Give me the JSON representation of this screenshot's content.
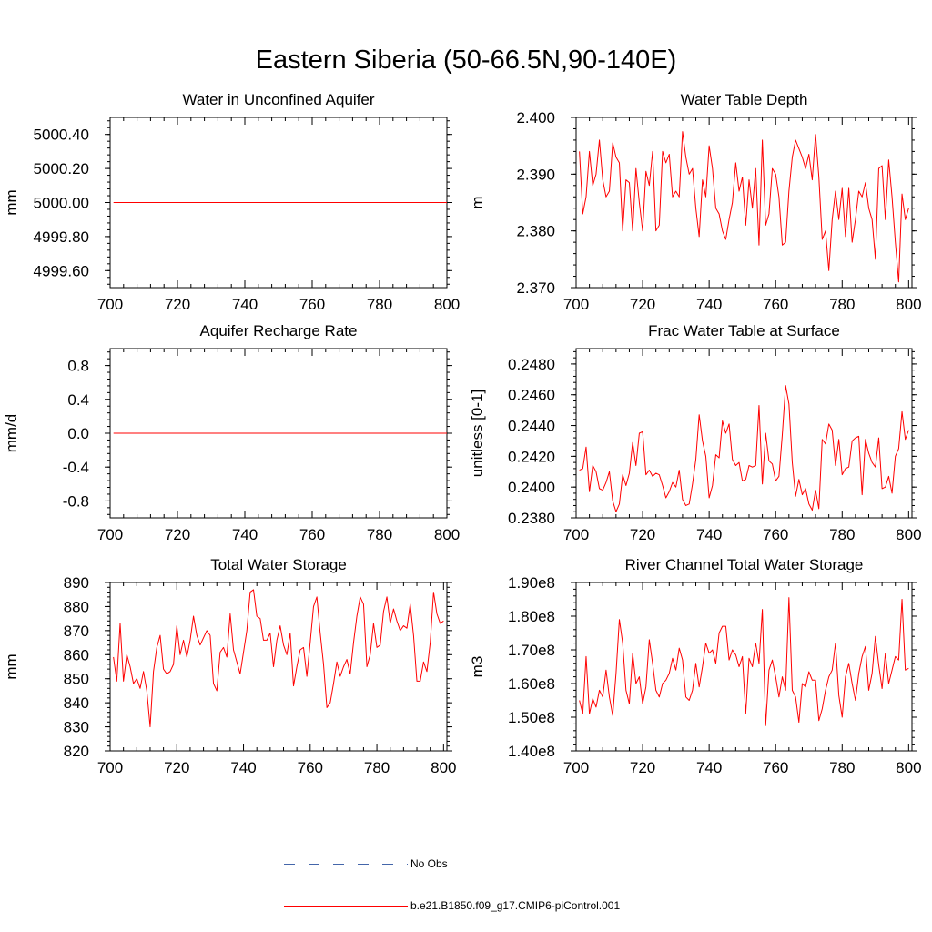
{
  "title": "Eastern Siberia (50-66.5N,90-140E)",
  "colors": {
    "model": "#ff0000",
    "obs": "#4466aa",
    "axis": "#000000"
  },
  "legend": {
    "obs_label": "No Obs",
    "model_label": "b.e21.B1850.f09_g17.CMIP6-piControl.001"
  },
  "chart_data": [
    {
      "type": "line",
      "title": "Water in Unconfined Aquifer",
      "ylabel": "mm",
      "xlim": [
        700,
        800
      ],
      "ylim": [
        4999.5,
        5000.5
      ],
      "yticks": [
        4999.6,
        4999.8,
        5000.0,
        5000.2,
        5000.4
      ],
      "ytick_labels": [
        "4999.60",
        "4999.80",
        "5000.00",
        "5000.20",
        "5000.40"
      ],
      "xticks": [
        700,
        720,
        740,
        760,
        780,
        800
      ],
      "xtick_labels": [
        "700",
        "720",
        "740",
        "760",
        "780",
        "800"
      ],
      "x_start": 701,
      "constant": 5000.0
    },
    {
      "type": "line",
      "title": "Water Table Depth",
      "ylabel": "m",
      "xlim": [
        700,
        801
      ],
      "ylim": [
        2.37,
        2.4
      ],
      "yticks": [
        2.37,
        2.38,
        2.39,
        2.4
      ],
      "ytick_labels": [
        "2.370",
        "2.380",
        "2.390",
        "2.400"
      ],
      "xticks": [
        700,
        720,
        740,
        760,
        780,
        800
      ],
      "xtick_labels": [
        "700",
        "720",
        "740",
        "760",
        "780",
        "800"
      ],
      "x_start": 701,
      "values": [
        2.394,
        2.383,
        2.386,
        2.394,
        2.388,
        2.39,
        2.396,
        2.389,
        2.386,
        2.387,
        2.3955,
        2.393,
        2.392,
        2.38,
        2.389,
        2.3885,
        2.38,
        2.391,
        2.385,
        2.38,
        2.3905,
        2.388,
        2.394,
        2.38,
        2.381,
        2.394,
        2.392,
        2.3935,
        2.386,
        2.387,
        2.386,
        2.3975,
        2.393,
        2.39,
        2.391,
        2.384,
        2.379,
        2.389,
        2.386,
        2.395,
        2.391,
        2.384,
        2.383,
        2.38,
        2.3785,
        2.382,
        2.385,
        2.392,
        2.387,
        2.3895,
        2.381,
        2.389,
        2.384,
        2.391,
        2.3775,
        2.396,
        2.381,
        2.383,
        2.391,
        2.39,
        2.386,
        2.3775,
        2.378,
        2.387,
        2.393,
        2.396,
        2.3945,
        2.393,
        2.391,
        2.3935,
        2.389,
        2.397,
        2.3895,
        2.3785,
        2.38,
        2.373,
        2.382,
        2.387,
        2.382,
        2.3875,
        2.379,
        2.3875,
        2.378,
        2.382,
        2.387,
        2.386,
        2.3885,
        2.384,
        2.382,
        2.375,
        2.391,
        2.3915,
        2.382,
        2.3925,
        2.386,
        2.378,
        2.371,
        2.3865,
        2.382,
        2.384
      ]
    },
    {
      "type": "line",
      "title": "Aquifer Recharge Rate",
      "ylabel": "mm/d",
      "xlim": [
        700,
        800
      ],
      "ylim": [
        -1.0,
        1.0
      ],
      "yticks": [
        -0.8,
        -0.4,
        0.0,
        0.4,
        0.8
      ],
      "ytick_labels": [
        "-0.8",
        "-0.4",
        "0.0",
        "0.4",
        "0.8"
      ],
      "xticks": [
        700,
        720,
        740,
        760,
        780,
        800
      ],
      "xtick_labels": [
        "700",
        "720",
        "740",
        "760",
        "780",
        "800"
      ],
      "x_start": 701,
      "constant": 0.0
    },
    {
      "type": "line",
      "title": "Frac Water Table at Surface",
      "ylabel": "unitless [0-1]",
      "xlim": [
        700,
        801
      ],
      "ylim": [
        0.238,
        0.249
      ],
      "yticks": [
        0.238,
        0.24,
        0.242,
        0.244,
        0.246,
        0.248
      ],
      "ytick_labels": [
        "0.2380",
        "0.2400",
        "0.2420",
        "0.2440",
        "0.2460",
        "0.2480"
      ],
      "xticks": [
        700,
        720,
        740,
        760,
        780,
        800
      ],
      "xtick_labels": [
        "700",
        "720",
        "740",
        "760",
        "780",
        "800"
      ],
      "x_start": 701,
      "values": [
        0.2411,
        0.2412,
        0.2426,
        0.2397,
        0.2414,
        0.241,
        0.2399,
        0.2398,
        0.2403,
        0.241,
        0.2391,
        0.2384,
        0.2389,
        0.2408,
        0.2401,
        0.2409,
        0.2429,
        0.2414,
        0.2435,
        0.2436,
        0.2408,
        0.2411,
        0.2407,
        0.2409,
        0.2408,
        0.2401,
        0.2393,
        0.2397,
        0.2403,
        0.24,
        0.2411,
        0.2392,
        0.2388,
        0.2389,
        0.2402,
        0.2418,
        0.2447,
        0.243,
        0.242,
        0.2393,
        0.2401,
        0.2421,
        0.2419,
        0.2443,
        0.2435,
        0.2441,
        0.2418,
        0.2414,
        0.2416,
        0.2404,
        0.2405,
        0.2414,
        0.2413,
        0.2414,
        0.2453,
        0.2402,
        0.2435,
        0.2417,
        0.2415,
        0.2404,
        0.2407,
        0.2434,
        0.2466,
        0.2454,
        0.2416,
        0.2394,
        0.2405,
        0.2395,
        0.2399,
        0.2389,
        0.2385,
        0.2398,
        0.2386,
        0.2431,
        0.2428,
        0.2441,
        0.2437,
        0.2414,
        0.2431,
        0.2408,
        0.2412,
        0.2413,
        0.243,
        0.2432,
        0.2433,
        0.2395,
        0.2431,
        0.2422,
        0.2416,
        0.2413,
        0.2432,
        0.2399,
        0.24,
        0.2407,
        0.2396,
        0.242,
        0.2425,
        0.2449,
        0.2431,
        0.2437
      ]
    },
    {
      "type": "line",
      "title": "Total Water Storage",
      "ylabel": "mm",
      "xlim": [
        700,
        801
      ],
      "ylim": [
        820,
        890
      ],
      "yticks": [
        820,
        830,
        840,
        850,
        860,
        870,
        880,
        890
      ],
      "ytick_labels": [
        "820",
        "830",
        "840",
        "850",
        "860",
        "870",
        "880",
        "890"
      ],
      "xticks": [
        700,
        720,
        740,
        760,
        780,
        800
      ],
      "xtick_labels": [
        "700",
        "720",
        "740",
        "760",
        "780",
        "800"
      ],
      "x_start": 701,
      "values": [
        859,
        849,
        873,
        849,
        860,
        855,
        848,
        850,
        846,
        853,
        845,
        830,
        853,
        863,
        868,
        854,
        852,
        853,
        856,
        872,
        860,
        866,
        859,
        866,
        876,
        868,
        864,
        867,
        870,
        868,
        848,
        845,
        861,
        863,
        859,
        877,
        862,
        857,
        852,
        861,
        870,
        886,
        887,
        876,
        875,
        866,
        866,
        869,
        855,
        866,
        872,
        864,
        860,
        869,
        847,
        855,
        862,
        863,
        851,
        865,
        880,
        884,
        869,
        856,
        838,
        840,
        848,
        857,
        851,
        855,
        858,
        852,
        865,
        876,
        884,
        881,
        855,
        860,
        873,
        863,
        864,
        878,
        884,
        873,
        879,
        874,
        870,
        872,
        871,
        881,
        868,
        849,
        849,
        857,
        853,
        865,
        886,
        877,
        873,
        874
      ]
    },
    {
      "type": "line",
      "title": "River Channel Total Water Storage",
      "ylabel": "m3",
      "xlim": [
        700,
        801
      ],
      "ylim": [
        140000000,
        190000000
      ],
      "yticks": [
        140000000,
        150000000,
        160000000,
        170000000,
        180000000,
        190000000
      ],
      "ytick_labels": [
        "1.40e8",
        "1.50e8",
        "1.60e8",
        "1.70e8",
        "1.80e8",
        "1.90e8"
      ],
      "xticks": [
        700,
        720,
        740,
        760,
        780,
        800
      ],
      "xtick_labels": [
        "700",
        "720",
        "740",
        "760",
        "780",
        "800"
      ],
      "x_start": 701,
      "values": [
        155000000,
        151000000,
        168000000,
        151000000,
        155500000,
        153000000,
        158000000,
        156000000,
        164000000,
        156000000,
        150500000,
        163000000,
        179000000,
        172000000,
        158000000,
        154000000,
        169000000,
        160000000,
        162000000,
        154000000,
        159000000,
        173000000,
        166000000,
        158000000,
        156000000,
        160000000,
        161000000,
        163000000,
        167500000,
        164000000,
        170500000,
        167000000,
        156000000,
        155000000,
        158000000,
        166000000,
        159000000,
        165000000,
        172000000,
        169000000,
        170000000,
        166000000,
        175000000,
        177000000,
        177000000,
        167000000,
        170000000,
        168500000,
        165000000,
        168000000,
        151000000,
        167500000,
        165000000,
        172000000,
        166000000,
        182000000,
        147500000,
        164000000,
        167000000,
        162000000,
        156000000,
        162000000,
        158000000,
        185500000,
        158000000,
        156000000,
        148500000,
        160000000,
        159000000,
        163500000,
        161000000,
        161000000,
        149000000,
        152500000,
        158000000,
        162000000,
        164000000,
        172000000,
        156500000,
        150000000,
        162000000,
        166000000,
        160000000,
        155000000,
        163000000,
        168000000,
        171000000,
        158000000,
        163000000,
        174000000,
        165500000,
        158500000,
        169000000,
        160000000,
        164000000,
        168000000,
        167000000,
        185000000,
        164000000,
        164500000
      ]
    }
  ]
}
